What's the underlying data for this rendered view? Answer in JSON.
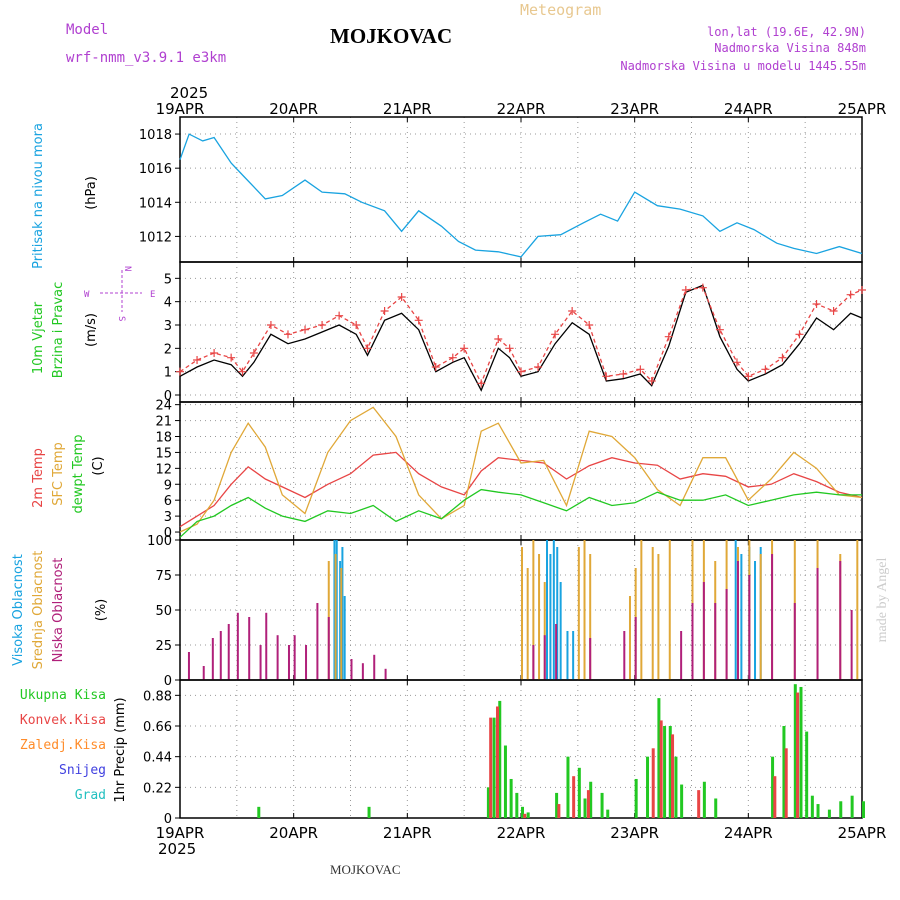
{
  "header": {
    "model_label": "Model",
    "model_name": "wrf-nmm_v3.9.1 e3km",
    "title": "MOJKOVAC",
    "subtitle": "Meteogram",
    "lonlat": "lon,lat (19.6E, 42.9N)",
    "elevation": "Nadmorska Visina 848m",
    "model_elevation": "Nadmorska Visina u modelu 1445.55m",
    "footer": "MOJKOVAC",
    "watermark": "made by Angel"
  },
  "colors": {
    "pressure": "#19a3e0",
    "windText": "#22c822",
    "temp2m": "#e84545",
    "sfcTemp": "#e0a838",
    "dewpoint": "#22c822",
    "highCloud": "#19a3e0",
    "midCloud": "#e0a838",
    "lowCloud": "#b0207a",
    "totalPrecip": "#22c822",
    "convPrecip": "#e84545",
    "freezing": "#ff8c2a",
    "snow": "#4040e0",
    "hail": "#22c0c0",
    "header": "#b040d0",
    "meteogram": "#e8c890"
  },
  "chart_data": [
    {
      "type": "line",
      "panel": "pressure",
      "ylabel": [
        "Pritisak na nivou mora",
        "(hPa)"
      ],
      "ylim": [
        1010.5,
        1019
      ],
      "yticks": [
        1012,
        1014,
        1016,
        1018
      ],
      "x_year": "2025",
      "x_ticks": [
        "19APR",
        "20APR",
        "21APR",
        "22APR",
        "23APR",
        "24APR",
        "25APR"
      ],
      "series": [
        {
          "name": "Pritisak",
          "color": "#19a3e0",
          "x": [
            0,
            0.08,
            0.2,
            0.3,
            0.45,
            0.55,
            0.75,
            0.9,
            1.1,
            1.25,
            1.45,
            1.6,
            1.8,
            1.95,
            2.1,
            2.3,
            2.45,
            2.6,
            2.8,
            3.0,
            3.15,
            3.35,
            3.55,
            3.7,
            3.85,
            4.0,
            4.2,
            4.4,
            4.6,
            4.75,
            4.9,
            5.05,
            5.25,
            5.4,
            5.6,
            5.8,
            6.0
          ],
          "y": [
            1016.5,
            1018,
            1017.6,
            1017.8,
            1016.3,
            1015.6,
            1014.2,
            1014.4,
            1015.3,
            1014.6,
            1014.5,
            1014.0,
            1013.5,
            1012.3,
            1013.5,
            1012.6,
            1011.7,
            1011.2,
            1011.1,
            1010.8,
            1012.0,
            1012.1,
            1012.8,
            1013.3,
            1012.9,
            1014.6,
            1013.8,
            1013.6,
            1013.2,
            1012.3,
            1012.8,
            1012.4,
            1011.6,
            1011.3,
            1011.0,
            1011.4,
            1011.0
          ]
        }
      ]
    },
    {
      "type": "line",
      "panel": "wind",
      "ylabel": [
        "10m Vjetar",
        "Brzina i Pravac",
        "(m/s)"
      ],
      "ylim": [
        -0.3,
        5.7
      ],
      "yticks": [
        0,
        1,
        2,
        3,
        4,
        5
      ],
      "compass": {
        "n": "N",
        "s": "S",
        "w": "W",
        "e": "E"
      },
      "series": [
        {
          "name": "Brzina",
          "color": "#000000",
          "x": [
            0,
            0.15,
            0.3,
            0.45,
            0.55,
            0.65,
            0.8,
            0.95,
            1.1,
            1.25,
            1.4,
            1.55,
            1.65,
            1.8,
            1.95,
            2.1,
            2.25,
            2.4,
            2.5,
            2.65,
            2.8,
            2.9,
            3.0,
            3.15,
            3.3,
            3.45,
            3.6,
            3.75,
            3.9,
            4.05,
            4.15,
            4.3,
            4.45,
            4.6,
            4.75,
            4.9,
            5.0,
            5.15,
            5.3,
            5.45,
            5.6,
            5.75,
            5.9,
            6.0
          ],
          "y": [
            0.8,
            1.2,
            1.5,
            1.3,
            0.8,
            1.4,
            2.6,
            2.2,
            2.4,
            2.7,
            3.0,
            2.6,
            1.7,
            3.2,
            3.5,
            2.8,
            1.0,
            1.4,
            1.6,
            0.2,
            2.0,
            1.6,
            0.8,
            1.0,
            2.2,
            3.1,
            2.6,
            0.6,
            0.7,
            0.9,
            0.4,
            2.1,
            4.4,
            4.7,
            2.5,
            1.1,
            0.6,
            0.9,
            1.3,
            2.2,
            3.3,
            2.8,
            3.5,
            3.3
          ]
        },
        {
          "name": "Udari",
          "color": "#e84545",
          "x": [
            0,
            0.15,
            0.3,
            0.45,
            0.55,
            0.65,
            0.8,
            0.95,
            1.1,
            1.25,
            1.4,
            1.55,
            1.65,
            1.8,
            1.95,
            2.1,
            2.25,
            2.4,
            2.5,
            2.65,
            2.8,
            2.9,
            3.0,
            3.15,
            3.3,
            3.45,
            3.6,
            3.75,
            3.9,
            4.05,
            4.15,
            4.3,
            4.45,
            4.6,
            4.75,
            4.9,
            5.0,
            5.15,
            5.3,
            5.45,
            5.6,
            5.75,
            5.9,
            6.0
          ],
          "y": [
            1.0,
            1.5,
            1.8,
            1.6,
            1.0,
            1.8,
            3.0,
            2.6,
            2.8,
            3.0,
            3.4,
            3.0,
            2.0,
            3.6,
            4.2,
            3.2,
            1.2,
            1.6,
            2.0,
            0.5,
            2.4,
            2.0,
            1.0,
            1.2,
            2.6,
            3.6,
            3.0,
            0.8,
            0.9,
            1.1,
            0.6,
            2.5,
            4.5,
            4.6,
            2.8,
            1.4,
            0.8,
            1.1,
            1.6,
            2.6,
            3.9,
            3.6,
            4.3,
            4.5
          ]
        }
      ]
    },
    {
      "type": "line",
      "panel": "temperature",
      "ylabel": [
        "2m Temp",
        "SFC Temp",
        "dewpt Temp",
        "(C)"
      ],
      "ylim": [
        -1.5,
        24.5
      ],
      "yticks": [
        0,
        3,
        6,
        9,
        12,
        15,
        18,
        21,
        24
      ],
      "series": [
        {
          "name": "2m Temp",
          "color": "#e84545",
          "x": [
            0,
            0.15,
            0.3,
            0.45,
            0.6,
            0.75,
            0.9,
            1.1,
            1.3,
            1.5,
            1.7,
            1.9,
            2.1,
            2.3,
            2.5,
            2.65,
            2.8,
            3.0,
            3.2,
            3.4,
            3.6,
            3.8,
            4.0,
            4.2,
            4.4,
            4.6,
            4.8,
            5.0,
            5.2,
            5.4,
            5.6,
            5.8,
            6.0
          ],
          "y": [
            1,
            3,
            5,
            9,
            12.3,
            10,
            8.5,
            6.5,
            9,
            11,
            14.5,
            15,
            11,
            8.5,
            7,
            11.5,
            14,
            13.5,
            13,
            10,
            12.5,
            14,
            13,
            12.6,
            10,
            11,
            10.5,
            8.5,
            9,
            11,
            9.5,
            7.5,
            6.5
          ]
        },
        {
          "name": "SFC Temp",
          "color": "#e0a838",
          "x": [
            0,
            0.15,
            0.3,
            0.45,
            0.6,
            0.75,
            0.9,
            1.1,
            1.3,
            1.5,
            1.7,
            1.9,
            2.1,
            2.3,
            2.5,
            2.65,
            2.8,
            3.0,
            3.2,
            3.4,
            3.6,
            3.8,
            4.0,
            4.2,
            4.4,
            4.6,
            4.8,
            5.0,
            5.2,
            5.4,
            5.6,
            5.8,
            6.0
          ],
          "y": [
            0,
            1.5,
            6,
            15,
            20.5,
            16,
            7,
            3.5,
            15,
            21,
            23.5,
            18,
            7,
            2.5,
            5,
            19,
            20.5,
            13,
            13.5,
            5,
            19,
            18,
            14,
            8,
            5,
            14,
            14,
            6,
            10,
            15,
            12,
            7,
            6.5
          ]
        },
        {
          "name": "dewpt Temp",
          "color": "#22c822",
          "x": [
            0,
            0.15,
            0.3,
            0.45,
            0.6,
            0.75,
            0.9,
            1.1,
            1.3,
            1.5,
            1.7,
            1.9,
            2.1,
            2.3,
            2.5,
            2.65,
            2.8,
            3.0,
            3.2,
            3.4,
            3.6,
            3.8,
            4.0,
            4.2,
            4.4,
            4.6,
            4.8,
            5.0,
            5.2,
            5.4,
            5.6,
            5.8,
            6.0
          ],
          "y": [
            -1,
            2,
            3,
            5,
            6.5,
            4.5,
            3,
            2,
            4,
            3.5,
            5,
            2,
            4,
            2.5,
            6,
            8,
            7.5,
            7,
            5.5,
            4,
            6.5,
            5,
            5.5,
            7.5,
            6,
            6,
            7,
            5,
            6,
            7,
            7.5,
            7,
            7
          ]
        }
      ]
    },
    {
      "type": "bar",
      "panel": "cloud",
      "ylabel": [
        "Visoka Oblacnost",
        "Srednja Oblacnost",
        "Niska Oblacnost",
        "(%)"
      ],
      "ylim": [
        0,
        100
      ],
      "yticks": [
        0,
        25,
        50,
        75,
        100
      ],
      "series": [
        {
          "name": "Visoka Oblacnost",
          "color": "#19a3e0",
          "x": [
            1.35,
            1.37,
            1.4,
            1.42,
            1.44,
            3.22,
            3.25,
            3.28,
            3.31,
            3.34,
            3.4,
            3.45,
            4.88,
            4.93,
            5.0,
            5.05,
            5.1
          ],
          "values": [
            100,
            100,
            85,
            95,
            60,
            100,
            90,
            100,
            95,
            70,
            35,
            35,
            100,
            90,
            95,
            85,
            95
          ]
        },
        {
          "name": "Srednja Oblacnost",
          "color": "#e0a838",
          "x": [
            1.3,
            1.36,
            1.41,
            3.0,
            3.05,
            3.1,
            3.15,
            3.2,
            3.5,
            3.55,
            3.6,
            3.95,
            4.0,
            4.05,
            4.15,
            4.2,
            4.3,
            4.5,
            4.6,
            4.7,
            4.8,
            4.9,
            5.0,
            5.1,
            5.2,
            5.4,
            5.6,
            5.8,
            5.95
          ],
          "values": [
            85,
            90,
            80,
            95,
            80,
            100,
            90,
            70,
            95,
            100,
            90,
            60,
            80,
            100,
            95,
            90,
            100,
            100,
            100,
            85,
            100,
            95,
            100,
            90,
            100,
            100,
            100,
            90,
            100
          ]
        },
        {
          "name": "Niska Oblacnost",
          "color": "#b0207a",
          "x": [
            0.07,
            0.2,
            0.28,
            0.35,
            0.42,
            0.5,
            0.6,
            0.7,
            0.75,
            0.85,
            0.95,
            1.0,
            1.1,
            1.2,
            1.3,
            1.5,
            1.6,
            1.7,
            1.8,
            3.1,
            3.2,
            3.3,
            3.6,
            3.9,
            4.0,
            4.4,
            4.5,
            4.6,
            4.7,
            4.8,
            4.9,
            5.0,
            5.2,
            5.4,
            5.6,
            5.8,
            5.9
          ],
          "values": [
            20,
            10,
            30,
            35,
            40,
            48,
            45,
            25,
            48,
            32,
            25,
            32,
            25,
            55,
            45,
            15,
            12,
            18,
            8,
            25,
            32,
            40,
            30,
            35,
            45,
            35,
            55,
            70,
            55,
            65,
            85,
            75,
            90,
            55,
            80,
            85,
            50
          ]
        }
      ]
    },
    {
      "type": "bar",
      "panel": "precip",
      "ylabel": [
        "1hr Precip (mm)"
      ],
      "ylim": [
        0,
        0.99
      ],
      "yticks": [
        0,
        0.22,
        0.44,
        0.66,
        0.88
      ],
      "legend": [
        "Ukupna Kisa",
        "Konvek.Kisa",
        "Zaledj.Kisa",
        "Snijeg",
        "Grad"
      ],
      "series": [
        {
          "name": "Ukupna Kisa",
          "color": "#22c822",
          "x": [
            0.68,
            1.65,
            2.7,
            2.75,
            2.8,
            2.85,
            2.9,
            2.95,
            3.0,
            3.05,
            3.3,
            3.4,
            3.5,
            3.55,
            3.6,
            3.7,
            3.75,
            4.0,
            4.1,
            4.2,
            4.25,
            4.3,
            4.35,
            4.4,
            4.6,
            4.7,
            5.2,
            5.3,
            5.4,
            5.45,
            5.5,
            5.55,
            5.6,
            5.7,
            5.8,
            5.9,
            6.0
          ],
          "values": [
            0.08,
            0.08,
            0.22,
            0.72,
            0.84,
            0.52,
            0.28,
            0.18,
            0.08,
            0.04,
            0.18,
            0.44,
            0.36,
            0.14,
            0.26,
            0.18,
            0.06,
            0.28,
            0.44,
            0.86,
            0.66,
            0.66,
            0.44,
            0.24,
            0.26,
            0.14,
            0.44,
            0.66,
            0.96,
            0.94,
            0.62,
            0.16,
            0.1,
            0.06,
            0.12,
            0.16,
            0.12
          ]
        },
        {
          "name": "Konvek.Kisa",
          "color": "#e84545",
          "x": [
            2.72,
            2.78,
            3.02,
            3.32,
            3.45,
            3.58,
            4.15,
            4.22,
            4.32,
            4.55,
            5.22,
            5.32,
            5.42
          ],
          "values": [
            0.72,
            0.8,
            0.03,
            0.1,
            0.3,
            0.2,
            0.5,
            0.7,
            0.6,
            0.2,
            0.3,
            0.5,
            0.9
          ]
        }
      ]
    }
  ]
}
